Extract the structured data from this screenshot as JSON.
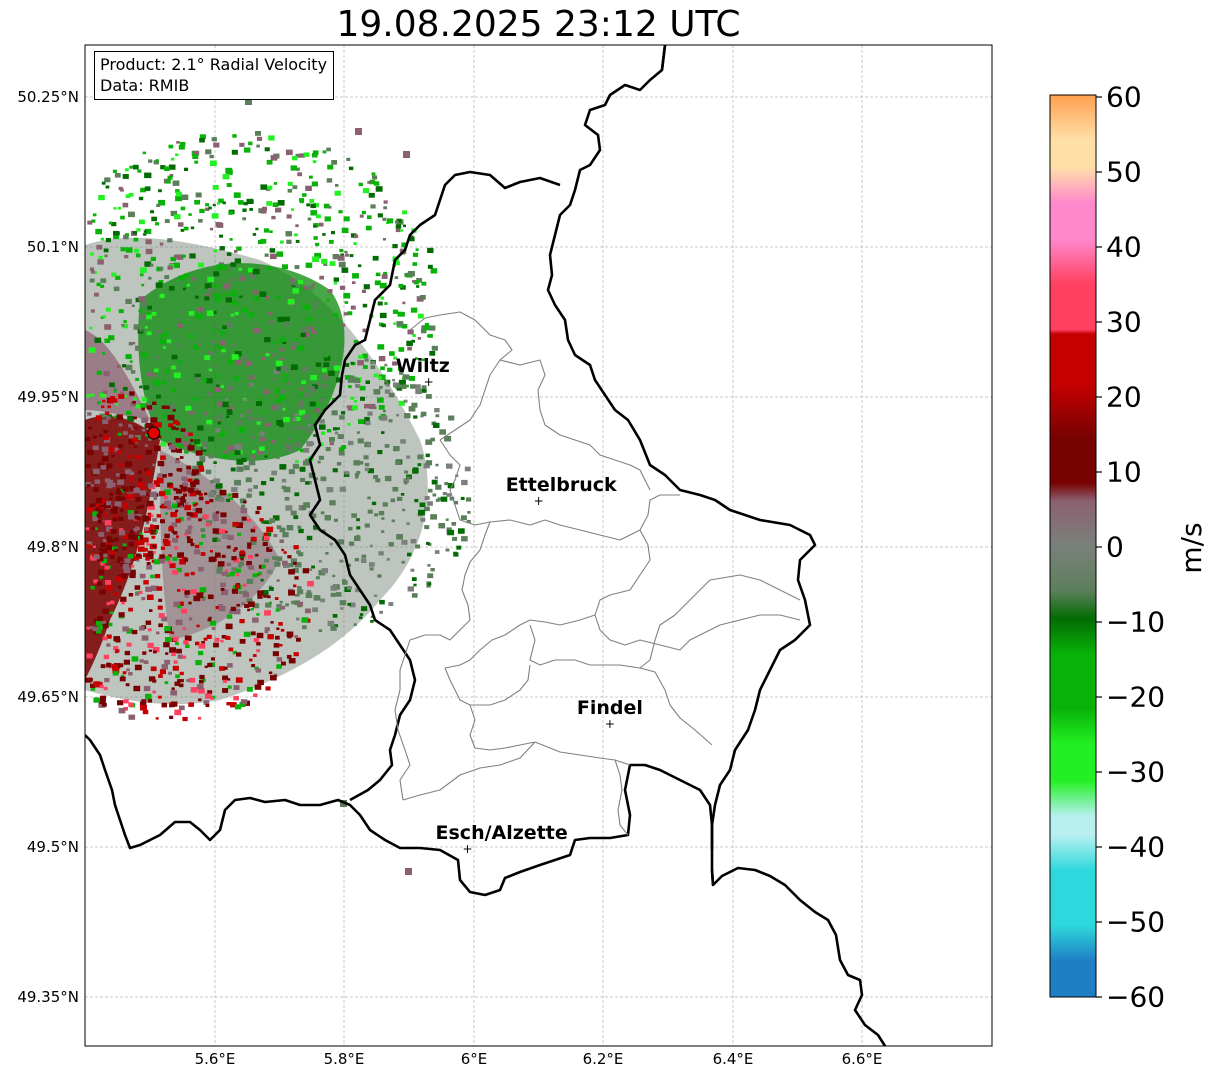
{
  "title": "19.08.2025 23:12 UTC",
  "info": {
    "product": "Product: 2.1° Radial Velocity",
    "data": "Data: RMIB"
  },
  "map": {
    "lat_ticks": [
      "50.25°N",
      "50.1°N",
      "49.95°N",
      "49.8°N",
      "49.65°N",
      "49.5°N",
      "49.35°N"
    ],
    "lon_ticks": [
      "5.6°E",
      "5.8°E",
      "6°E",
      "6.2°E",
      "6.4°E",
      "6.6°E"
    ],
    "cities": [
      {
        "name": "Wiltz",
        "lon": 5.93,
        "lat": 49.966
      },
      {
        "name": "Ettelbruck",
        "lon": 6.1,
        "lat": 49.847
      },
      {
        "name": "Findel",
        "lon": 6.21,
        "lat": 49.624
      },
      {
        "name": "Esch/Alzette",
        "lon": 5.99,
        "lat": 49.499
      }
    ],
    "radar_site": {
      "lon": 5.505,
      "lat": 49.914
    }
  },
  "colorbar": {
    "label": "m/s",
    "ticks": [
      "60",
      "50",
      "40",
      "30",
      "20",
      "10",
      "0",
      "−10",
      "−20",
      "−30",
      "−40",
      "−50",
      "−60"
    ],
    "min": -60,
    "max": 60,
    "colors": {
      "v_neg60": "#1f7fc4",
      "v_neg50": "#2ed9dd",
      "v_neg40": "#b8f0f0",
      "v_neg30": "#23f023",
      "v_neg20": "#08b208",
      "v_neg10": "#036b03",
      "v_neg5": "#5b7f5b",
      "v_0": "#7a807a",
      "v_5": "#8b6070",
      "v_10": "#780202",
      "v_20": "#c60000",
      "v_30": "#ff4060",
      "v_40": "#ff88cc",
      "v_50": "#ffdfa8",
      "v_60": "#ffa050"
    }
  }
}
